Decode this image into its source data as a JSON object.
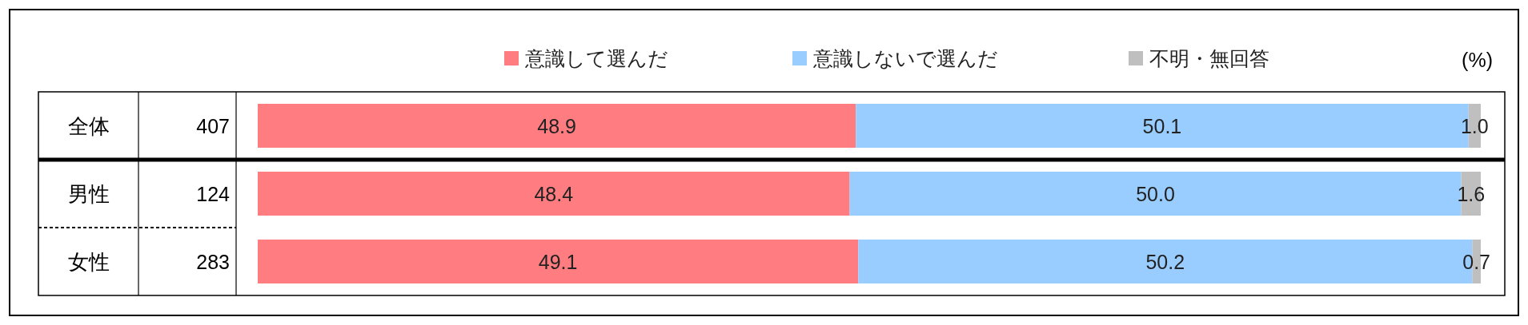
{
  "chart_data": {
    "type": "bar",
    "orientation": "horizontal",
    "stacked": true,
    "legend": "top",
    "categories": [
      "全体",
      "男性",
      "女性"
    ],
    "series": [
      {
        "name": "意識して選んだ",
        "color": "#ff7c80",
        "values": [
          48.9,
          48.4,
          49.1
        ],
        "value_labels": [
          "48.9",
          "48.4",
          "49.1"
        ]
      },
      {
        "name": "意識しないで選んだ",
        "color": "#99ccff",
        "values": [
          50.1,
          50.0,
          50.2
        ],
        "value_labels": [
          "50.1",
          "50.0",
          "50.2"
        ]
      },
      {
        "name": "不明・無回答",
        "color": "#bfbfbf",
        "values": [
          1.0,
          1.6,
          0.7
        ],
        "value_labels": [
          "1.0",
          "1.6",
          "0.7"
        ]
      }
    ],
    "annotations": [
      "(%)",
      "407",
      "124",
      "283"
    ]
  }
}
